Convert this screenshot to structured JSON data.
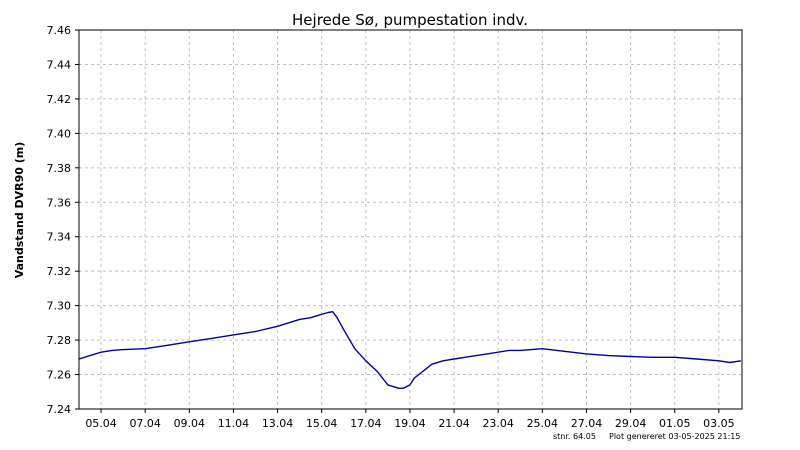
{
  "chart_data": {
    "type": "line",
    "title": "Hejrede Sø, pumpestation indv.",
    "xlabel": "",
    "ylabel": "Vandstand DVR90 (m)",
    "x_tick_labels": [
      "05.04",
      "07.04",
      "09.04",
      "11.04",
      "13.04",
      "15.04",
      "17.04",
      "19.04",
      "21.04",
      "23.04",
      "25.04",
      "27.04",
      "29.04",
      "01.05",
      "03.05"
    ],
    "x_ticks_day": [
      1,
      3,
      5,
      7,
      9,
      11,
      13,
      15,
      17,
      19,
      21,
      23,
      25,
      27,
      29
    ],
    "xlim_day": [
      0,
      30.05
    ],
    "y_ticks": [
      7.24,
      7.26,
      7.28,
      7.3,
      7.32,
      7.34,
      7.36,
      7.38,
      7.4,
      7.42,
      7.44,
      7.46
    ],
    "ylim": [
      7.24,
      7.46
    ],
    "grid": true,
    "legend": "none",
    "series": [
      {
        "color": "#0000a0",
        "x_day": [
          0,
          0.5,
          1,
          1.5,
          2,
          3,
          4,
          5,
          6,
          7,
          8,
          9,
          10,
          10.5,
          11,
          11.3,
          11.5,
          11.7,
          12,
          12.5,
          13,
          13.5,
          14,
          14.5,
          14.7,
          15,
          15.2,
          15.5,
          16,
          16.5,
          17,
          17.5,
          18,
          18.5,
          19,
          19.5,
          20,
          21,
          22,
          23,
          24,
          25,
          26,
          27,
          28,
          29,
          29.5,
          30
        ],
        "y": [
          7.269,
          7.271,
          7.273,
          7.274,
          7.2745,
          7.275,
          7.277,
          7.279,
          7.281,
          7.283,
          7.285,
          7.288,
          7.292,
          7.293,
          7.295,
          7.296,
          7.2965,
          7.293,
          7.286,
          7.275,
          7.268,
          7.262,
          7.254,
          7.252,
          7.252,
          7.254,
          7.258,
          7.261,
          7.266,
          7.268,
          7.269,
          7.27,
          7.271,
          7.272,
          7.273,
          7.274,
          7.274,
          7.275,
          7.2735,
          7.272,
          7.271,
          7.2705,
          7.27,
          7.27,
          7.269,
          7.268,
          7.267,
          7.268
        ]
      }
    ],
    "footer_left": "stnr. 64.05",
    "footer_right": "Plot genereret 03-05-2025 21:15"
  }
}
